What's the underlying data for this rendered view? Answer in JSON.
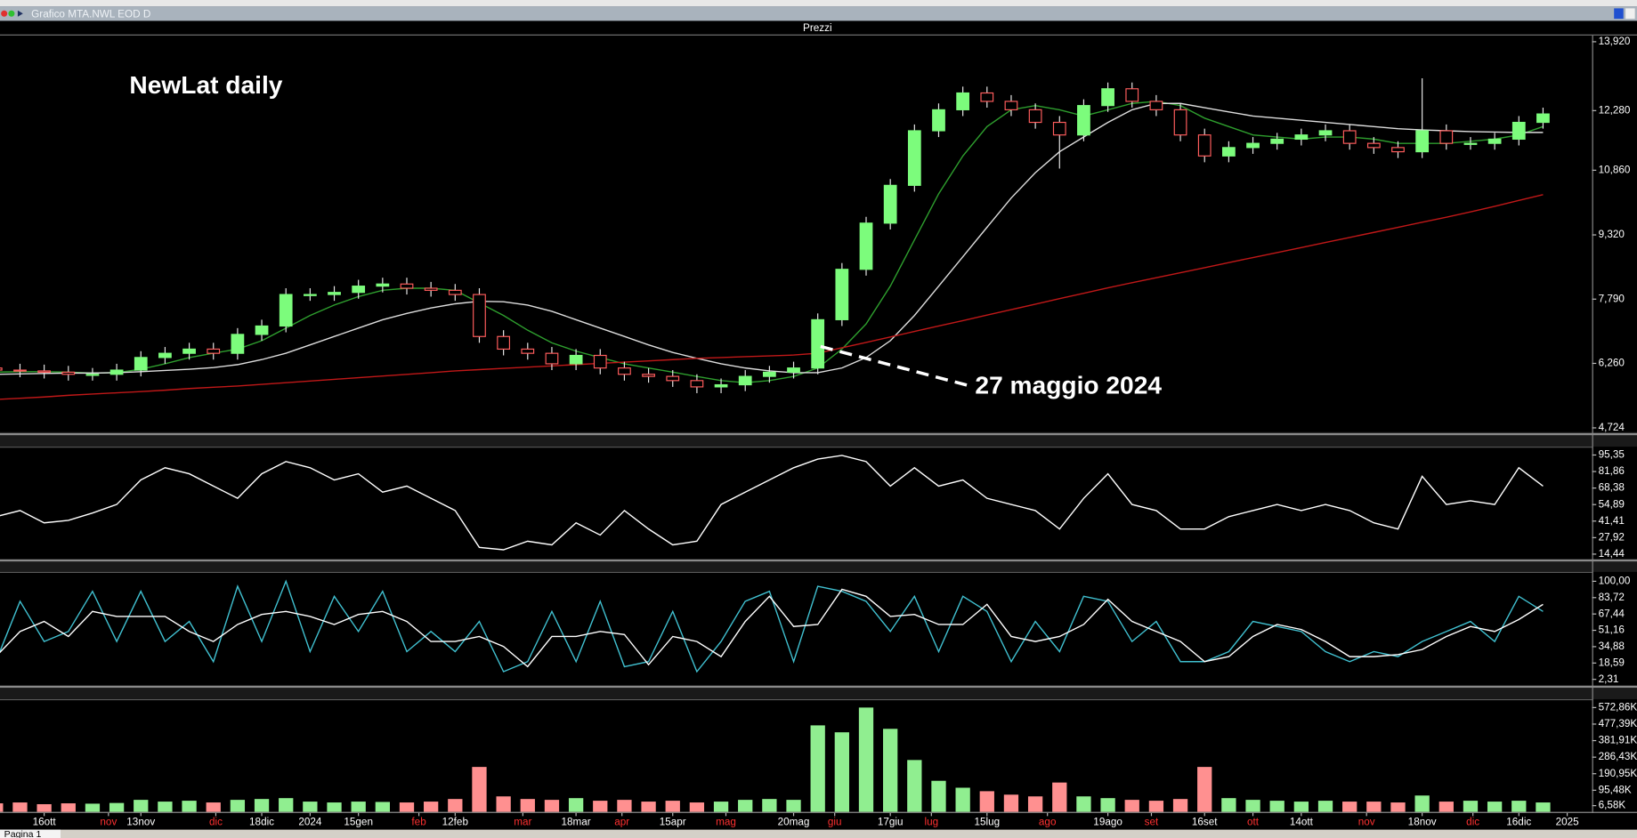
{
  "window": {
    "title": "Grafico MTA.NWL EOD D",
    "tab": "Pagina 1"
  },
  "chart_data": [
    {
      "type": "candlestick",
      "title": "Prezzi",
      "annotations": [
        "NewLat daily",
        "27 maggio 2024"
      ],
      "xlim": [
        0,
        64
      ],
      "ylim": [
        4724,
        13920
      ],
      "yticks": [
        {
          "value": 13920,
          "label": "13,920"
        },
        {
          "value": 12280,
          "label": "12,280"
        },
        {
          "value": 10860,
          "label": "10,860"
        },
        {
          "value": 9320,
          "label": "9,320"
        },
        {
          "value": 7790,
          "label": "7,790"
        },
        {
          "value": 6260,
          "label": "6,260"
        },
        {
          "value": 4724,
          "label": "4,724"
        }
      ],
      "up_color": "#7cfc7c",
      "down_color": "#ff5c5c",
      "open": [
        6150,
        6100,
        6080,
        6050,
        6000,
        6000,
        6100,
        6400,
        6500,
        6600,
        6500,
        6950,
        7150,
        7900,
        7900,
        7950,
        8100,
        8150,
        8050,
        8000,
        7900,
        6900,
        6600,
        6500,
        6250,
        6450,
        6150,
        6000,
        5950,
        5850,
        5700,
        5750,
        5950,
        6050,
        6150,
        7300,
        8500,
        9600,
        10500,
        11800,
        12300,
        12700,
        12500,
        12300,
        12000,
        11700,
        12400,
        12800,
        12500,
        12300,
        11700,
        11200,
        11400,
        11500,
        11600,
        11700,
        11800,
        11500,
        11400,
        11300,
        11800,
        11500,
        11500,
        11600,
        12000
      ],
      "high": [
        6300,
        6250,
        6230,
        6200,
        6150,
        6250,
        6550,
        6650,
        6750,
        6750,
        7100,
        7300,
        8050,
        8050,
        8100,
        8250,
        8300,
        8300,
        8200,
        8150,
        8050,
        7050,
        6750,
        6650,
        6600,
        6600,
        6300,
        6150,
        6100,
        6000,
        5900,
        6100,
        6200,
        6300,
        7450,
        8650,
        9750,
        10650,
        11950,
        12450,
        12850,
        12850,
        12650,
        12450,
        12150,
        12550,
        12950,
        12950,
        12650,
        12450,
        11850,
        11550,
        11650,
        11750,
        11850,
        11950,
        11950,
        11650,
        11550,
        13050,
        11950,
        11650,
        11750,
        12150,
        12350
      ],
      "low": [
        5950,
        5930,
        5900,
        5850,
        5850,
        5850,
        5950,
        6250,
        6350,
        6350,
        6350,
        6800,
        7000,
        7750,
        7750,
        7800,
        7950,
        7900,
        7850,
        7750,
        6750,
        6450,
        6350,
        6100,
        6100,
        6000,
        5850,
        5800,
        5700,
        5550,
        5550,
        5600,
        5800,
        5900,
        6000,
        7150,
        8350,
        9450,
        10350,
        11650,
        12150,
        12350,
        12150,
        11850,
        10900,
        11550,
        12250,
        12350,
        12150,
        11550,
        11050,
        11050,
        11250,
        11350,
        11450,
        11550,
        11350,
        11250,
        11150,
        11150,
        11350,
        11350,
        11350,
        11450,
        11850
      ],
      "close": [
        6100,
        6080,
        6050,
        6000,
        6000,
        6100,
        6400,
        6500,
        6600,
        6500,
        6950,
        7150,
        7900,
        7900,
        7950,
        8100,
        8150,
        8050,
        8000,
        7900,
        6900,
        6600,
        6500,
        6250,
        6450,
        6150,
        6000,
        5950,
        5850,
        5700,
        5750,
        5950,
        6050,
        6150,
        7300,
        8500,
        9600,
        10500,
        11800,
        12300,
        12700,
        12500,
        12300,
        12000,
        11700,
        12400,
        12800,
        12500,
        12300,
        11700,
        11200,
        11400,
        11500,
        11600,
        11700,
        11800,
        11500,
        11400,
        11300,
        11800,
        11500,
        11500,
        11600,
        12000,
        12200
      ],
      "series": [
        {
          "color": "#2e9e2e",
          "values": [
            6050,
            6060,
            6060,
            6050,
            6030,
            6040,
            6120,
            6250,
            6400,
            6500,
            6600,
            6800,
            7100,
            7400,
            7650,
            7850,
            8000,
            8050,
            8050,
            8000,
            7700,
            7400,
            7050,
            6750,
            6550,
            6400,
            6250,
            6150,
            6050,
            5950,
            5850,
            5800,
            5850,
            5950,
            6150,
            6600,
            7200,
            8100,
            9200,
            10300,
            11200,
            11900,
            12300,
            12400,
            12300,
            12150,
            12300,
            12450,
            12500,
            12400,
            12100,
            11900,
            11700,
            11650,
            11600,
            11650,
            11650,
            11600,
            11500,
            11500,
            11500,
            11550,
            11600,
            11700,
            11900
          ]
        },
        {
          "color": "#dddddd",
          "values": [
            6000,
            6010,
            6020,
            6030,
            6030,
            6040,
            6060,
            6090,
            6120,
            6160,
            6230,
            6350,
            6500,
            6700,
            6900,
            7100,
            7300,
            7450,
            7580,
            7680,
            7740,
            7730,
            7650,
            7500,
            7300,
            7100,
            6900,
            6700,
            6520,
            6380,
            6250,
            6150,
            6080,
            6040,
            6040,
            6150,
            6400,
            6800,
            7400,
            8100,
            8800,
            9500,
            10200,
            10800,
            11300,
            11650,
            12000,
            12300,
            12450,
            12450,
            12350,
            12250,
            12150,
            12100,
            12050,
            12000,
            11950,
            11900,
            11850,
            11820,
            11800,
            11780,
            11770,
            11760,
            11760
          ]
        },
        {
          "color": "#c01818",
          "values": [
            5400,
            5430,
            5460,
            5500,
            5530,
            5560,
            5590,
            5620,
            5660,
            5690,
            5720,
            5760,
            5800,
            5840,
            5880,
            5920,
            5960,
            6000,
            6040,
            6080,
            6110,
            6140,
            6170,
            6200,
            6230,
            6260,
            6290,
            6320,
            6350,
            6380,
            6400,
            6420,
            6440,
            6460,
            6500,
            6630,
            6760,
            6890,
            7020,
            7150,
            7280,
            7410,
            7540,
            7670,
            7800,
            7930,
            8060,
            8180,
            8300,
            8420,
            8540,
            8660,
            8780,
            8900,
            9020,
            9140,
            9260,
            9380,
            9500,
            9620,
            9740,
            9870,
            10000,
            10140,
            10280
          ]
        }
      ]
    },
    {
      "type": "line",
      "xlim": [
        0,
        64
      ],
      "ylim": [
        14.44,
        95.35
      ],
      "yticks": [
        {
          "value": 95.35,
          "label": "95,35"
        },
        {
          "value": 81.86,
          "label": "81,86"
        },
        {
          "value": 68.38,
          "label": "68,38"
        },
        {
          "value": 54.89,
          "label": "54,89"
        },
        {
          "value": 41.41,
          "label": "41,41"
        },
        {
          "value": 27.92,
          "label": "27,92"
        },
        {
          "value": 14.44,
          "label": "14,44"
        }
      ],
      "series": [
        {
          "color": "#ffffff",
          "values": [
            45,
            50,
            40,
            42,
            48,
            55,
            75,
            85,
            80,
            70,
            60,
            80,
            90,
            85,
            75,
            80,
            65,
            70,
            60,
            50,
            20,
            18,
            25,
            22,
            40,
            30,
            50,
            35,
            22,
            25,
            55,
            65,
            75,
            85,
            92,
            95,
            90,
            70,
            85,
            70,
            75,
            60,
            55,
            50,
            35,
            60,
            80,
            55,
            50,
            35,
            35,
            45,
            50,
            55,
            50,
            55,
            50,
            40,
            35,
            78,
            55,
            58,
            55,
            85,
            70
          ]
        }
      ]
    },
    {
      "type": "line",
      "xlim": [
        0,
        64
      ],
      "ylim": [
        2.31,
        100
      ],
      "yticks": [
        {
          "value": 100,
          "label": "100,00"
        },
        {
          "value": 83.72,
          "label": "83,72"
        },
        {
          "value": 67.44,
          "label": "67,44"
        },
        {
          "value": 51.16,
          "label": "51,16"
        },
        {
          "value": 34.88,
          "label": "34,88"
        },
        {
          "value": 18.59,
          "label": "18,59"
        },
        {
          "value": 2.31,
          "label": "2,31"
        }
      ],
      "series": [
        {
          "color": "#40c0d0",
          "values": [
            20,
            80,
            40,
            50,
            90,
            40,
            90,
            40,
            60,
            20,
            95,
            40,
            100,
            30,
            85,
            50,
            90,
            30,
            50,
            30,
            60,
            10,
            20,
            70,
            20,
            80,
            15,
            20,
            70,
            10,
            40,
            80,
            90,
            20,
            95,
            90,
            80,
            50,
            85,
            30,
            85,
            70,
            20,
            60,
            30,
            85,
            80,
            40,
            60,
            20,
            20,
            30,
            60,
            55,
            50,
            30,
            20,
            30,
            25,
            40,
            50,
            60,
            40,
            85,
            70
          ]
        },
        {
          "color": "#ffffff",
          "values": [
            25,
            50,
            60,
            45,
            70,
            65,
            65,
            65,
            50,
            40,
            57,
            67,
            70,
            65,
            57,
            67,
            70,
            60,
            40,
            40,
            45,
            35,
            15,
            45,
            45,
            50,
            47,
            17,
            45,
            40,
            25,
            60,
            85,
            55,
            57,
            92,
            85,
            65,
            67,
            57,
            57,
            77,
            45,
            40,
            45,
            57,
            82,
            60,
            50,
            40,
            20,
            25,
            45,
            57,
            52,
            40,
            25,
            25,
            27,
            32,
            45,
            55,
            50,
            62,
            77
          ]
        }
      ]
    },
    {
      "type": "bar",
      "xlim": [
        0,
        64
      ],
      "ylim": [
        6580,
        572860
      ],
      "yticks": [
        {
          "value": 572860,
          "label": "572,86K"
        },
        {
          "value": 477390,
          "label": "477,39K"
        },
        {
          "value": 381910,
          "label": "381,91K"
        },
        {
          "value": 286430,
          "label": "286,43K"
        },
        {
          "value": 190950,
          "label": "190,95K"
        },
        {
          "value": 95480,
          "label": "95,48K"
        },
        {
          "value": 6580,
          "label": "6,58K"
        }
      ],
      "values": [
        20000,
        25000,
        15000,
        20000,
        18000,
        22000,
        40000,
        30000,
        35000,
        25000,
        40000,
        45000,
        50000,
        30000,
        25000,
        30000,
        28000,
        25000,
        30000,
        45000,
        230000,
        60000,
        45000,
        40000,
        50000,
        35000,
        40000,
        30000,
        35000,
        25000,
        30000,
        40000,
        45000,
        40000,
        470000,
        430000,
        572860,
        450000,
        270000,
        150000,
        110000,
        90000,
        70000,
        60000,
        140000,
        60000,
        50000,
        40000,
        35000,
        45000,
        230000,
        50000,
        40000,
        35000,
        30000,
        35000,
        30000,
        30000,
        25000,
        65000,
        30000,
        35000,
        30000,
        35000,
        25000
      ],
      "up_color": "#90ee90",
      "down_color": "#ff9090",
      "xticks": [
        {
          "value": 0,
          "label": "t"
        },
        {
          "value": 2,
          "label": "16ott"
        },
        {
          "value": 4.66,
          "label": "nov"
        },
        {
          "value": 6,
          "label": "13nov"
        },
        {
          "value": 9.1,
          "label": "dic"
        },
        {
          "value": 11,
          "label": "18dic"
        },
        {
          "value": 13,
          "label": "2024"
        },
        {
          "value": 15,
          "label": "15gen"
        },
        {
          "value": 17.5,
          "label": "feb"
        },
        {
          "value": 19,
          "label": "12feb"
        },
        {
          "value": 21.8,
          "label": "mar"
        },
        {
          "value": 24,
          "label": "18mar"
        },
        {
          "value": 25.9,
          "label": "apr"
        },
        {
          "value": 28,
          "label": "15apr"
        },
        {
          "value": 30.2,
          "label": "mag"
        },
        {
          "value": 33,
          "label": "20mag"
        },
        {
          "value": 34.7,
          "label": "giu"
        },
        {
          "value": 37,
          "label": "17giu"
        },
        {
          "value": 38.7,
          "label": "lug"
        },
        {
          "value": 41,
          "label": "15lug"
        },
        {
          "value": 43.5,
          "label": "ago"
        },
        {
          "value": 46,
          "label": "19ago"
        },
        {
          "value": 47.8,
          "label": "set"
        },
        {
          "value": 50,
          "label": "16set"
        },
        {
          "value": 52,
          "label": "ott"
        },
        {
          "value": 54,
          "label": "14ott"
        },
        {
          "value": 56.7,
          "label": "nov"
        },
        {
          "value": 59,
          "label": "18nov"
        },
        {
          "value": 61.1,
          "label": "dic"
        },
        {
          "value": 63,
          "label": "16dic"
        },
        {
          "value": 65,
          "label": "2025"
        }
      ],
      "xtick_colors": [
        "#ff3030",
        "#ffffff",
        "#ff3030",
        "#ffffff",
        "#ff3030",
        "#ffffff",
        "#ffffff",
        "#ffffff",
        "#ff3030",
        "#ffffff",
        "#ff3030",
        "#ffffff",
        "#ff3030",
        "#ffffff",
        "#ff3030",
        "#ffffff",
        "#ff3030",
        "#ffffff",
        "#ff3030",
        "#ffffff",
        "#ff3030",
        "#ffffff",
        "#ff3030",
        "#ffffff",
        "#ff3030",
        "#ffffff",
        "#ff3030",
        "#ffffff",
        "#ff3030",
        "#ffffff",
        "#ffffff"
      ]
    }
  ]
}
